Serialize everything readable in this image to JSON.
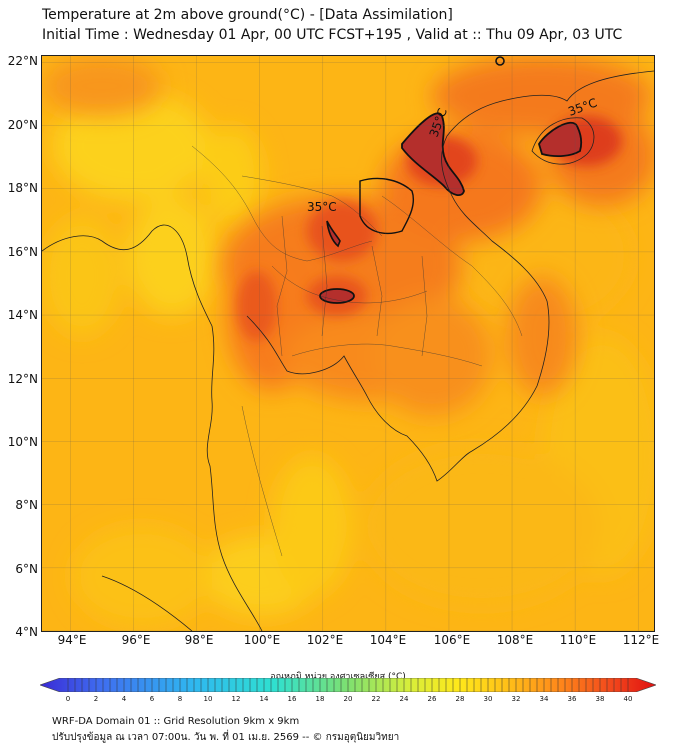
{
  "title": {
    "line1": "Temperature at 2m above ground(°C) - [Data Assimilation]",
    "line2": "Initial Time : Wednesday 01 Apr, 00 UTC FCST+195 , Valid at :: Thu 09 Apr, 03 UTC"
  },
  "axes": {
    "y_labels": [
      "22°N",
      "20°N",
      "18°N",
      "16°N",
      "14°N",
      "12°N",
      "10°N",
      "8°N",
      "6°N",
      "4°N"
    ],
    "x_labels": [
      "94°E",
      "96°E",
      "98°E",
      "100°E",
      "102°E",
      "104°E",
      "106°E",
      "108°E",
      "110°E",
      "112°E"
    ],
    "lat_range": [
      4,
      22.2
    ],
    "lon_range": [
      93.1,
      112.5
    ]
  },
  "contours": {
    "label": "35°C",
    "level": 35
  },
  "colorbar": {
    "label": "อุณหภูมิ หน่วย องศาเซลเซียส (°C)",
    "ticks": [
      "0",
      "2",
      "4",
      "6",
      "8",
      "10",
      "12",
      "14",
      "16",
      "18",
      "20",
      "22",
      "24",
      "26",
      "28",
      "30",
      "32",
      "34",
      "36",
      "38",
      "40"
    ],
    "min": 0,
    "max": 40,
    "colors": [
      "#3a2bd6",
      "#3f6ef0",
      "#2fb8f0",
      "#2fe0d0",
      "#7ee070",
      "#d8ee3a",
      "#ffe81a",
      "#ffbf18",
      "#ff8a1a",
      "#f2461c",
      "#e01010"
    ]
  },
  "footer": {
    "line1": "WRF-DA Domain 01 :: Grid Resolution 9km x 9km",
    "line2": "ปรับปรุงข้อมูล ณ เวลา 07:00น. วัน พ. ที่ 01 เม.ย. 2569 -- © กรมอุตุนิยมวิทยา"
  }
}
